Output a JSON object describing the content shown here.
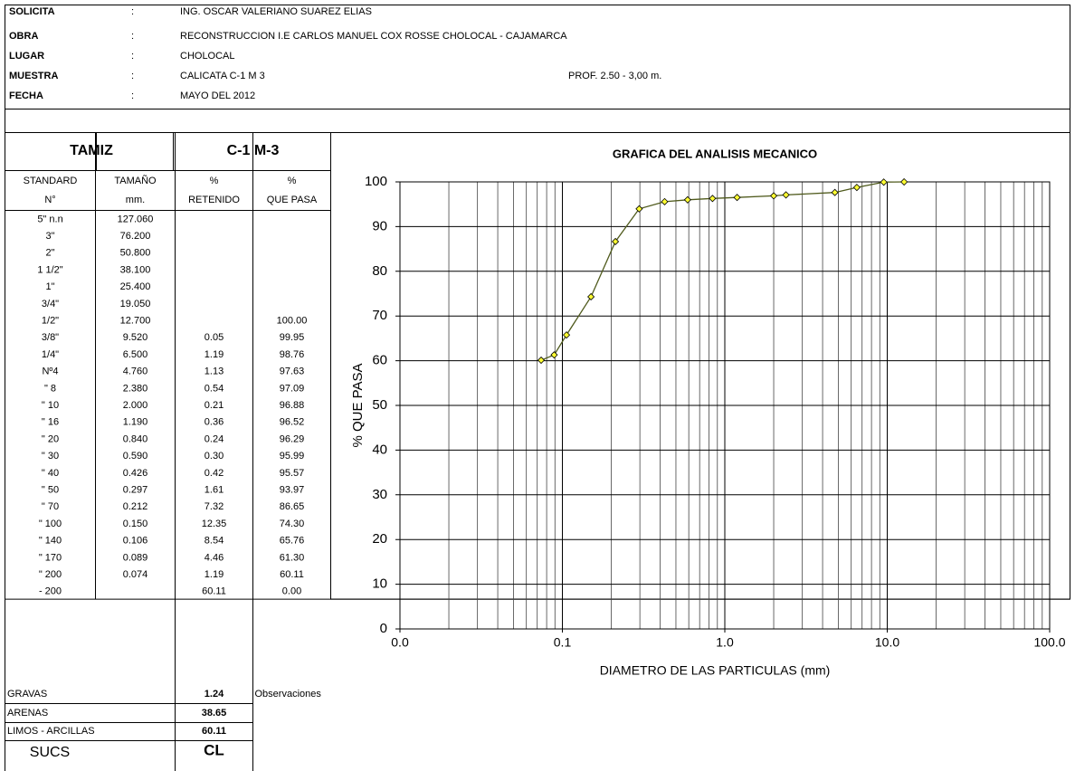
{
  "header": {
    "separator": ":",
    "fields": [
      {
        "label": "SOLICITA",
        "value": "ING. OSCAR VALERIANO SUAREZ ELIAS"
      },
      {
        "label": "OBRA",
        "value": "RECONSTRUCCION I.E CARLOS MANUEL COX ROSSE CHOLOCAL - CAJAMARCA"
      },
      {
        "label": "LUGAR",
        "value": "CHOLOCAL"
      },
      {
        "label": "MUESTRA",
        "value": "CALICATA C-1  M 3",
        "extra": "PROF. 2.50 - 3,00 m."
      },
      {
        "label": "FECHA",
        "value": "MAYO DEL 2012"
      }
    ]
  },
  "table": {
    "group_headers": [
      "TAMIZ",
      "C-1  M-3"
    ],
    "column_headers": [
      [
        "STANDARD",
        "N°"
      ],
      [
        "TAMAÑO",
        "mm."
      ],
      [
        "%",
        "RETENIDO"
      ],
      [
        "%",
        "QUE PASA"
      ]
    ],
    "rows": [
      [
        "5\" n.n",
        "127.060",
        null,
        null
      ],
      [
        "3\"",
        "76.200",
        null,
        null
      ],
      [
        "2\"",
        "50.800",
        null,
        null
      ],
      [
        "1 1/2\"",
        "38.100",
        null,
        null
      ],
      [
        "1\"",
        "25.400",
        null,
        null
      ],
      [
        "3/4\"",
        "19.050",
        null,
        null
      ],
      [
        "1/2\"",
        "12.700",
        null,
        "100.00"
      ],
      [
        "3/8\"",
        "9.520",
        "0.05",
        "99.95"
      ],
      [
        "1/4\"",
        "6.500",
        "1.19",
        "98.76"
      ],
      [
        "Nº4",
        "4.760",
        "1.13",
        "97.63"
      ],
      [
        "\" 8",
        "2.380",
        "0.54",
        "97.09"
      ],
      [
        "\" 10",
        "2.000",
        "0.21",
        "96.88"
      ],
      [
        "\" 16",
        "1.190",
        "0.36",
        "96.52"
      ],
      [
        "\" 20",
        "0.840",
        "0.24",
        "96.29"
      ],
      [
        "\" 30",
        "0.590",
        "0.30",
        "95.99"
      ],
      [
        "\" 40",
        "0.426",
        "0.42",
        "95.57"
      ],
      [
        "\" 50",
        "0.297",
        "1.61",
        "93.97"
      ],
      [
        "\" 70",
        "0.212",
        "7.32",
        "86.65"
      ],
      [
        "\" 100",
        "0.150",
        "12.35",
        "74.30"
      ],
      [
        "\" 140",
        "0.106",
        "8.54",
        "65.76"
      ],
      [
        "\" 170",
        "0.089",
        "4.46",
        "61.30"
      ],
      [
        "\" 200",
        "0.074",
        "1.19",
        "60.11"
      ],
      [
        "- 200",
        null,
        "60.11",
        "0.00"
      ]
    ],
    "summary": [
      {
        "label": "GRAVAS",
        "value": "1.24"
      },
      {
        "label": "ARENAS",
        "value": "38.65"
      },
      {
        "label": "LIMOS - ARCILLAS",
        "value": "60.11"
      }
    ],
    "observations": "Observaciones",
    "classification": {
      "label": "SUCS",
      "value": "CL"
    }
  },
  "chart_data": {
    "type": "line",
    "title": "GRAFICA DEL ANALISIS MECANICO",
    "x_label": "DIAMETRO DE LAS PARTICULAS (mm)",
    "y_label": "% QUE PASA",
    "xscale": "log",
    "grid": true,
    "x": [
      12.7,
      9.52,
      6.5,
      4.76,
      2.38,
      2.0,
      1.19,
      0.84,
      0.59,
      0.426,
      0.297,
      0.212,
      0.15,
      0.106,
      0.089,
      0.074
    ],
    "series": [
      {
        "name": "C-1 M-3",
        "color": "#4f5a1c",
        "marker_color": "#ffff33",
        "values": [
          100,
          99.95,
          98.76,
          97.63,
          97.09,
          96.88,
          96.52,
          96.29,
          95.99,
          95.57,
          93.97,
          86.65,
          74.3,
          65.76,
          61.3,
          60.11
        ]
      }
    ],
    "xlim": [
      0.01,
      100
    ],
    "xticks": [
      {
        "value": 0.01,
        "label": "0.0"
      },
      {
        "value": 0.1,
        "label": "0.1"
      },
      {
        "value": 1,
        "label": "1.0"
      },
      {
        "value": 10,
        "label": "10.0"
      },
      {
        "value": 100,
        "label": "100.0"
      }
    ],
    "ylim": [
      0,
      100
    ],
    "yticks": [
      0,
      10,
      20,
      30,
      40,
      50,
      60,
      70,
      80,
      90,
      100
    ]
  }
}
